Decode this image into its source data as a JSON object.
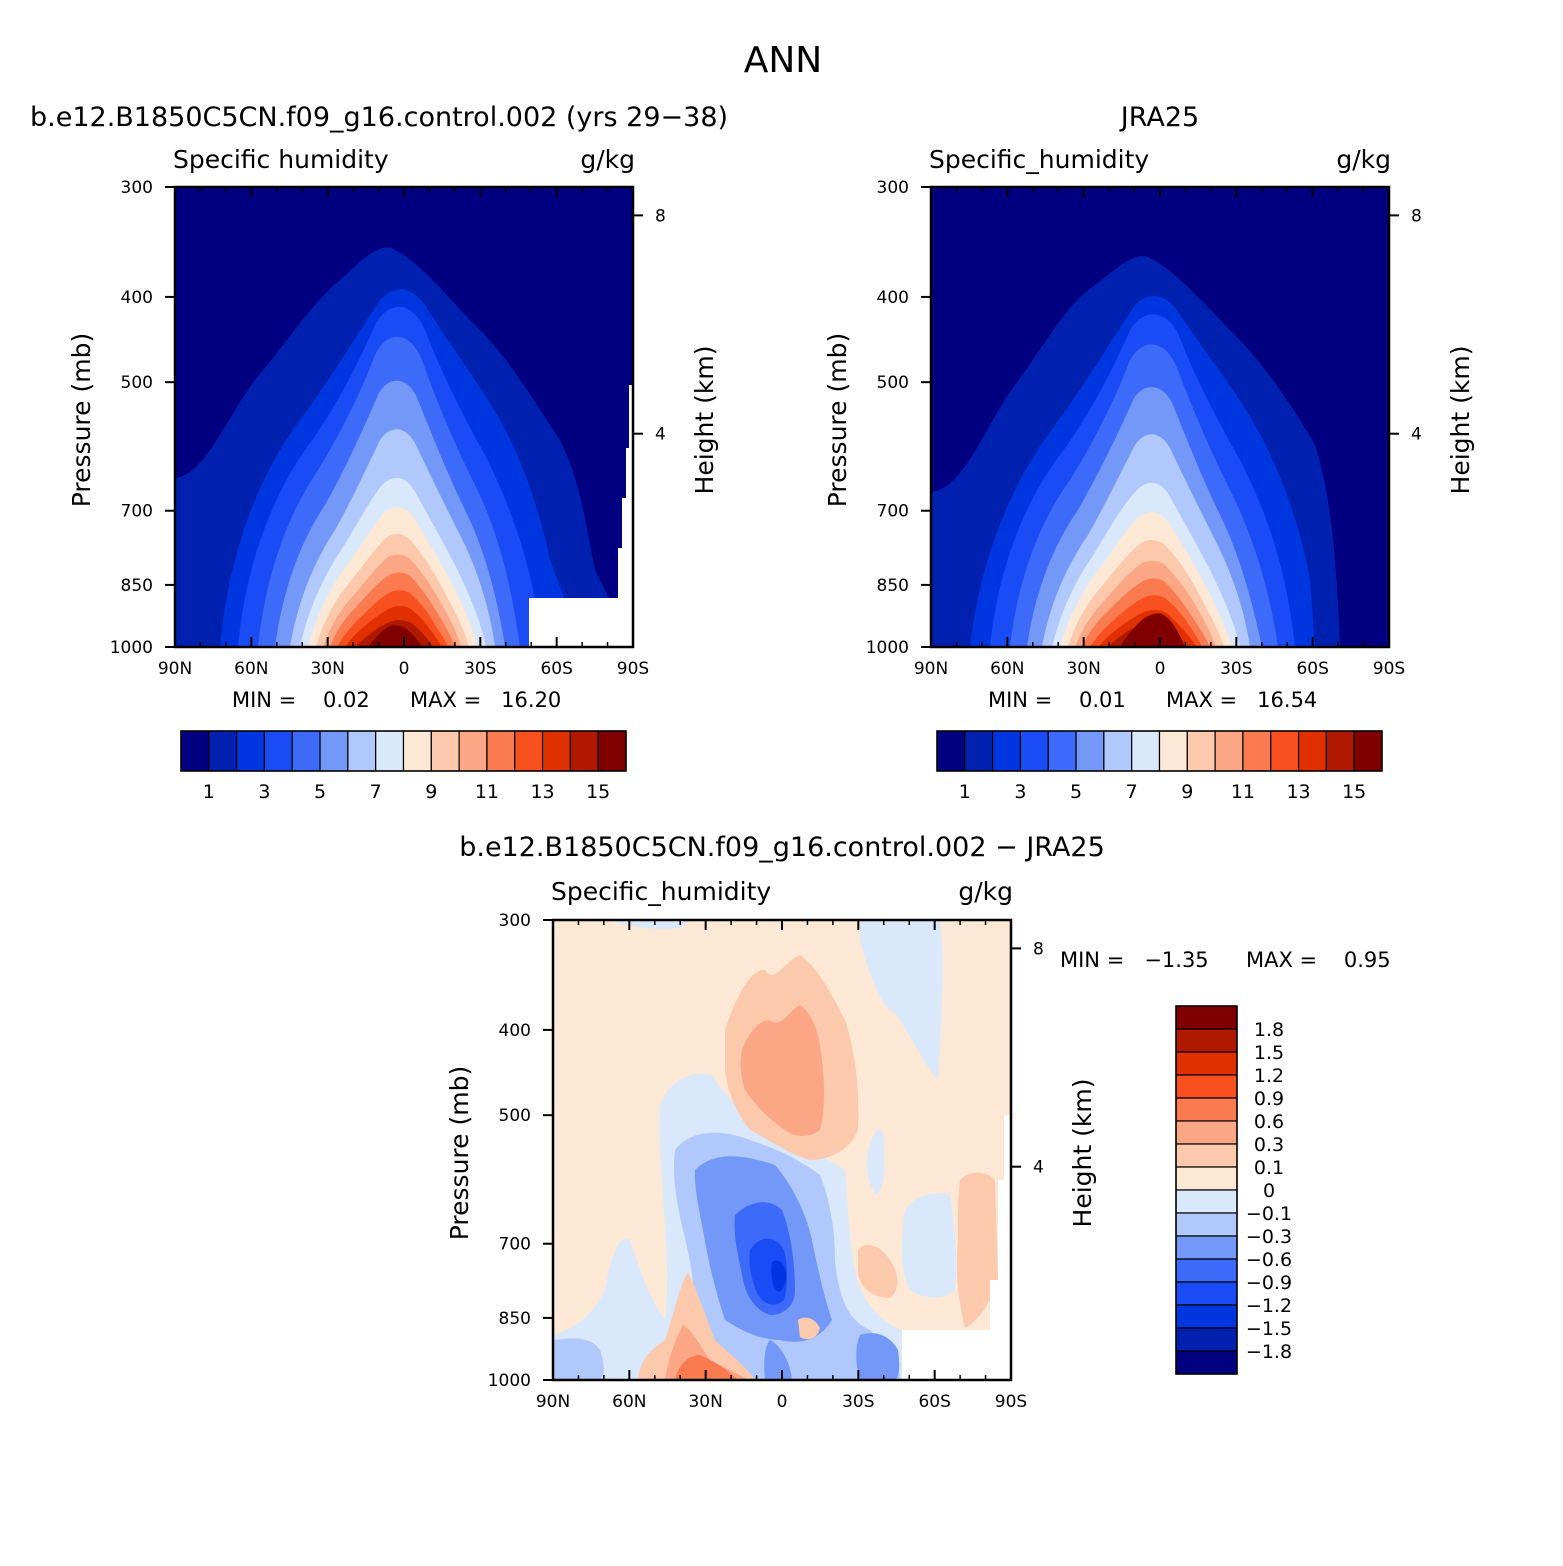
{
  "figure": {
    "title": "ANN"
  },
  "chart_data": [
    {
      "type": "contour",
      "panel_title": "b.e12.B1850C5CN.f09_g16.control.002 (yrs 29−38)",
      "left_label": "Specific humidity",
      "units_label": "g/kg",
      "ylabel": "Pressure (mb)",
      "y2label": "Height (km)",
      "x_ticks": [
        "90N",
        "60N",
        "30N",
        "0",
        "30S",
        "60S",
        "90S"
      ],
      "y_ticks": [
        "300",
        "400",
        "500",
        "700",
        "850",
        "1000"
      ],
      "y_range_mb": [
        1000,
        300
      ],
      "y2_ticks": [
        "8",
        "4"
      ],
      "min_text": "MIN =    0.02",
      "max_text": "MAX =   16.20",
      "colorbar_labels": [
        "1",
        "3",
        "5",
        "7",
        "9",
        "11",
        "13",
        "15"
      ],
      "contour_levels": [
        1,
        2,
        3,
        4,
        5,
        6,
        7,
        8,
        9,
        10,
        11,
        12,
        13,
        14,
        15
      ],
      "peak_value_near_equator_1000mb": 16.2,
      "field_note": "maximum near equator at the surface, decreasing with height and latitude"
    },
    {
      "type": "contour",
      "panel_title": "JRA25",
      "left_label": "Specific_humidity",
      "units_label": "g/kg",
      "ylabel": "Pressure (mb)",
      "y2label": "Height (km)",
      "x_ticks": [
        "90N",
        "60N",
        "30N",
        "0",
        "30S",
        "60S",
        "90S"
      ],
      "y_ticks": [
        "300",
        "400",
        "500",
        "700",
        "850",
        "1000"
      ],
      "y_range_mb": [
        1000,
        300
      ],
      "y2_ticks": [
        "8",
        "4"
      ],
      "min_text": "MIN =    0.01",
      "max_text": "MAX =   16.54",
      "colorbar_labels": [
        "1",
        "3",
        "5",
        "7",
        "9",
        "11",
        "13",
        "15"
      ],
      "contour_levels": [
        1,
        2,
        3,
        4,
        5,
        6,
        7,
        8,
        9,
        10,
        11,
        12,
        13,
        14,
        15
      ],
      "peak_value_near_equator_1000mb": 16.54
    },
    {
      "type": "contour",
      "panel_title": "b.e12.B1850C5CN.f09_g16.control.002 − JRA25",
      "left_label": "Specific_humidity",
      "units_label": "g/kg",
      "ylabel": "Pressure (mb)",
      "y2label": "Height (km)",
      "x_ticks": [
        "90N",
        "60N",
        "30N",
        "0",
        "30S",
        "60S",
        "90S"
      ],
      "y_ticks": [
        "300",
        "400",
        "500",
        "700",
        "850",
        "1000"
      ],
      "y_range_mb": [
        1000,
        300
      ],
      "y2_ticks": [
        "8",
        "4"
      ],
      "min_text": "MIN =   −1.35",
      "max_text": "MAX =    0.95",
      "colorbar_labels": [
        "1.8",
        "1.5",
        "1.2",
        "0.9",
        "0.6",
        "0.3",
        "0.1",
        "0",
        "−0.1",
        "−0.3",
        "−0.6",
        "−0.9",
        "−1.2",
        "−1.5",
        "−1.8"
      ],
      "contour_levels": [
        -1.8,
        -1.5,
        -1.2,
        -0.9,
        -0.6,
        -0.3,
        -0.1,
        0,
        0.1,
        0.3,
        0.6,
        0.9,
        1.2,
        1.5,
        1.8
      ]
    }
  ],
  "colors": {
    "seq": [
      "#000080",
      "#0020b0",
      "#0036e0",
      "#1a4cf5",
      "#3d6af8",
      "#7498f8",
      "#b0c8fb",
      "#dae8fb",
      "#fde8d6",
      "#fcc9ad",
      "#fba785",
      "#fb7b50",
      "#f8501e",
      "#e03000",
      "#b01800",
      "#800000"
    ],
    "diff": [
      "#000080",
      "#0020b0",
      "#0036e0",
      "#1a4cf5",
      "#3d6af8",
      "#7498f8",
      "#b0c8fb",
      "#dae8fb",
      "#fde8d6",
      "#fcc9ad",
      "#fba785",
      "#fb7b50",
      "#f8501e",
      "#e03000",
      "#b01800",
      "#800000"
    ]
  }
}
